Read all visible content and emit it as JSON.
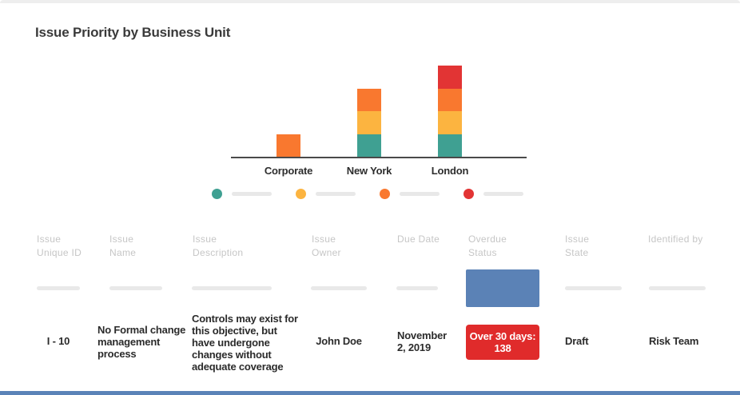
{
  "title": "Issue Priority by Business Unit",
  "colors": {
    "teal": "#3fa092",
    "amber": "#fcb440",
    "orange": "#f9782f",
    "red": "#e23434",
    "badge_red": "#e02b2b",
    "placeholder_blue": "#5b82b6",
    "bottom_bar_blue": "#5b83b8",
    "skeleton_gray": "#e9e9e9",
    "header_gray": "#c6c6c6",
    "axis_gray": "#4a4a4a"
  },
  "chart_data": {
    "type": "bar",
    "subtype": "stacked",
    "title": "Issue Priority by Business Unit",
    "categories": [
      "Corporate",
      "New York",
      "London"
    ],
    "series": [
      {
        "name": "priority-teal",
        "color": "#3fa092",
        "values": [
          0,
          1,
          1
        ]
      },
      {
        "name": "priority-amber",
        "color": "#fcb440",
        "values": [
          0,
          1,
          1
        ]
      },
      {
        "name": "priority-orange",
        "color": "#f9782f",
        "values": [
          1,
          1,
          1
        ]
      },
      {
        "name": "priority-red",
        "color": "#e23434",
        "values": [
          0,
          0,
          1
        ]
      }
    ],
    "xlabel": "",
    "ylabel": "",
    "ylim": [
      0,
      4
    ],
    "grid": false,
    "legend_position": "bottom",
    "legend_labels_are_placeholders": true
  },
  "table": {
    "headers": [
      "Issue\nUnique ID",
      "Issue\nName",
      "Issue\nDescription",
      "Issue\nOwner",
      "Due Date",
      "Overdue\nStatus",
      "Issue\nState",
      "Identified by"
    ],
    "row": {
      "issue_unique_id": "I - 10",
      "issue_name": "No Formal change\nmanagement\nprocess",
      "issue_description": "Controls may exist for\nthis objective, but\nhave undergone\nchanges without\nadequate coverage",
      "issue_owner": "John Doe",
      "due_date": "November\n2, 2019",
      "overdue_status": "Over 30 days:\n138",
      "issue_state": "Draft",
      "identified_by": "Risk Team"
    }
  }
}
